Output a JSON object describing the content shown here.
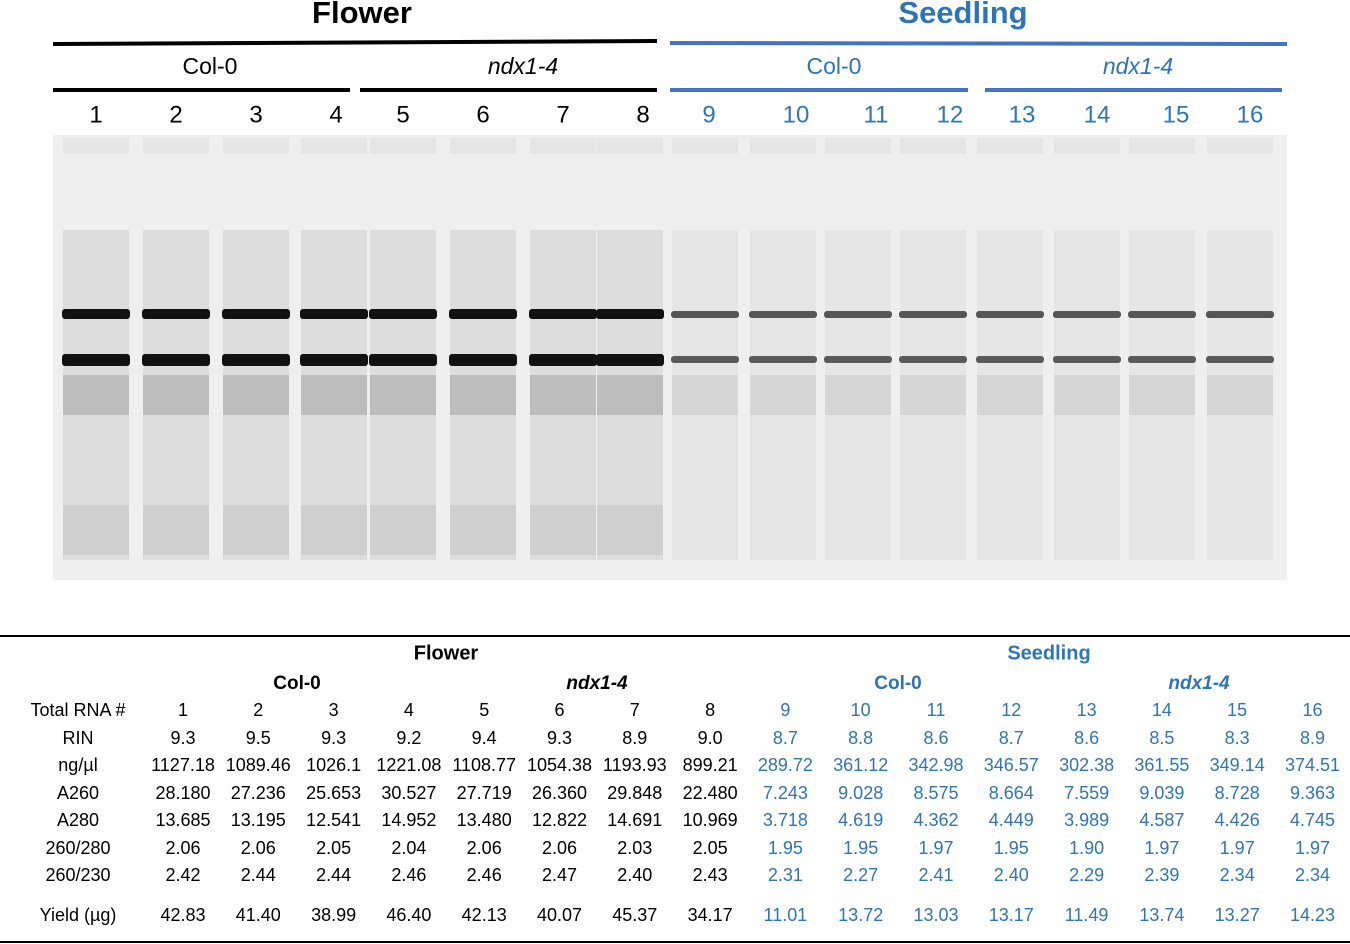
{
  "gel": {
    "groups": [
      {
        "title": "Flower",
        "genotypes": [
          "Col-0",
          "ndx1-4"
        ]
      },
      {
        "title": "Seedling",
        "genotypes": [
          "Col-0",
          "ndx1-4"
        ]
      }
    ],
    "lanes": [
      "1",
      "2",
      "3",
      "4",
      "5",
      "6",
      "7",
      "8",
      "9",
      "10",
      "11",
      "12",
      "13",
      "14",
      "15",
      "16"
    ]
  },
  "table": {
    "groups": [
      {
        "title": "Flower",
        "genotypes": [
          "Col-0",
          "ndx1-4"
        ]
      },
      {
        "title": "Seedling",
        "genotypes": [
          "Col-0",
          "ndx1-4"
        ]
      }
    ],
    "rows": [
      {
        "label": "Total RNA #",
        "values": [
          "1",
          "2",
          "3",
          "4",
          "5",
          "6",
          "7",
          "8",
          "9",
          "10",
          "11",
          "12",
          "13",
          "14",
          "15",
          "16"
        ]
      },
      {
        "label": "RIN",
        "values": [
          "9.3",
          "9.5",
          "9.3",
          "9.2",
          "9.4",
          "9.3",
          "8.9",
          "9.0",
          "8.7",
          "8.8",
          "8.6",
          "8.7",
          "8.6",
          "8.5",
          "8.3",
          "8.9"
        ]
      },
      {
        "label": "ng/µl",
        "values": [
          "1127.18",
          "1089.46",
          "1026.1",
          "1221.08",
          "1108.77",
          "1054.38",
          "1193.93",
          "899.21",
          "289.72",
          "361.12",
          "342.98",
          "346.57",
          "302.38",
          "361.55",
          "349.14",
          "374.51"
        ]
      },
      {
        "label": "A260",
        "values": [
          "28.180",
          "27.236",
          "25.653",
          "30.527",
          "27.719",
          "26.360",
          "29.848",
          "22.480",
          "7.243",
          "9.028",
          "8.575",
          "8.664",
          "7.559",
          "9.039",
          "8.728",
          "9.363"
        ]
      },
      {
        "label": "A280",
        "values": [
          "13.685",
          "13.195",
          "12.541",
          "14.952",
          "13.480",
          "12.822",
          "14.691",
          "10.969",
          "3.718",
          "4.619",
          "4.362",
          "4.449",
          "3.989",
          "4.587",
          "4.426",
          "4.745"
        ]
      },
      {
        "label": "260/280",
        "values": [
          "2.06",
          "2.06",
          "2.05",
          "2.04",
          "2.06",
          "2.06",
          "2.03",
          "2.05",
          "1.95",
          "1.95",
          "1.97",
          "1.95",
          "1.90",
          "1.97",
          "1.97",
          "1.97"
        ]
      },
      {
        "label": "260/230",
        "values": [
          "2.42",
          "2.44",
          "2.44",
          "2.46",
          "2.46",
          "2.47",
          "2.40",
          "2.43",
          "2.31",
          "2.27",
          "2.41",
          "2.40",
          "2.29",
          "2.39",
          "2.34",
          "2.34"
        ]
      },
      {
        "label": "Yield (µg)",
        "values": [
          "42.83",
          "41.40",
          "38.99",
          "46.40",
          "42.13",
          "40.07",
          "45.37",
          "34.17",
          "11.01",
          "13.72",
          "13.03",
          "13.17",
          "11.49",
          "13.74",
          "13.27",
          "14.23"
        ]
      }
    ]
  }
}
